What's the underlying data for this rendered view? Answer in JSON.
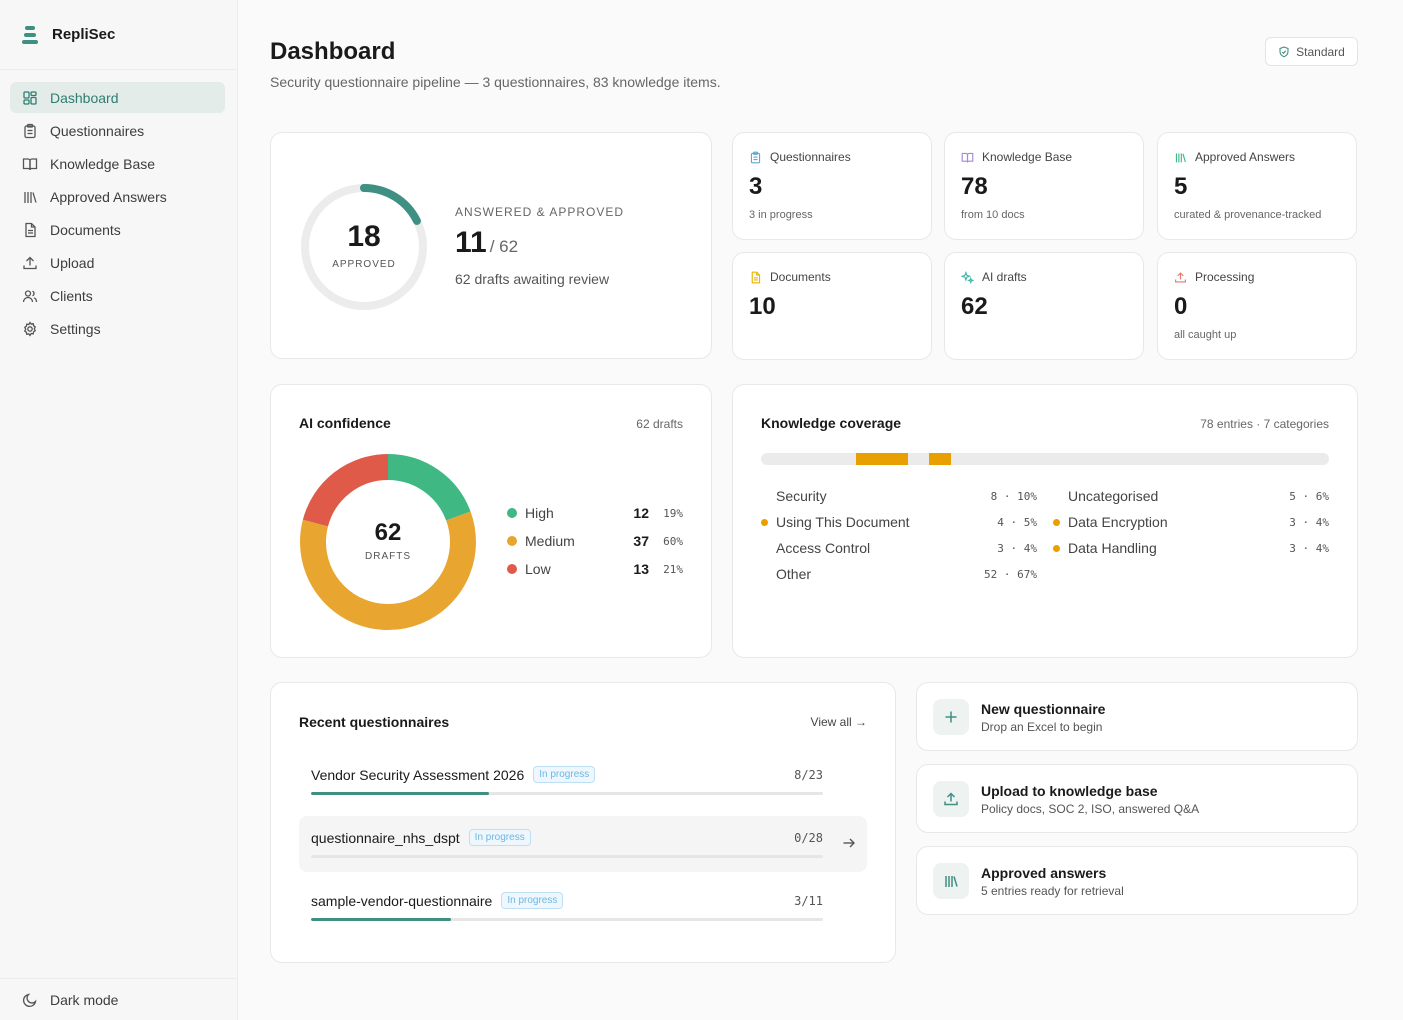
{
  "app": {
    "name": "RepliSec"
  },
  "sidebar": {
    "items": [
      {
        "label": "Dashboard",
        "icon": "dashboard-grid-icon",
        "active": true
      },
      {
        "label": "Questionnaires",
        "icon": "clipboard-icon"
      },
      {
        "label": "Knowledge Base",
        "icon": "book-icon"
      },
      {
        "label": "Approved Answers",
        "icon": "library-icon"
      },
      {
        "label": "Documents",
        "icon": "document-icon"
      },
      {
        "label": "Upload",
        "icon": "upload-icon"
      },
      {
        "label": "Clients",
        "icon": "users-icon"
      },
      {
        "label": "Settings",
        "icon": "gear-icon"
      }
    ],
    "footer": {
      "label": "Dark mode",
      "icon": "moon-icon"
    }
  },
  "header": {
    "title": "Dashboard",
    "subtitle": "Security questionnaire pipeline — 3 questionnaires, 83 knowledge items.",
    "plan_badge": "Standard"
  },
  "hero": {
    "ring_value": "18",
    "ring_label": "APPROVED",
    "ring_fraction": 0.177,
    "label": "ANSWERED & APPROVED",
    "value": "11",
    "total": "/ 62",
    "footnote": "62 drafts awaiting review"
  },
  "stats": [
    {
      "label": "Questionnaires",
      "value": "3",
      "sub": "3 in progress",
      "icon": "clipboard-icon",
      "color": "#5aa9d6"
    },
    {
      "label": "Knowledge Base",
      "value": "78",
      "sub": "from 10 docs",
      "icon": "book-icon",
      "color": "#a58ad6"
    },
    {
      "label": "Approved Answers",
      "value": "5",
      "sub": "curated & provenance-tracked",
      "icon": "library-icon",
      "color": "#3fb884"
    },
    {
      "label": "Documents",
      "value": "10",
      "sub": "",
      "icon": "document-icon",
      "color": "#e8b400"
    },
    {
      "label": "AI drafts",
      "value": "62",
      "sub": "",
      "icon": "sparkle-icon",
      "color": "#3fb8a8"
    },
    {
      "label": "Processing",
      "value": "0",
      "sub": "all caught up",
      "icon": "upload-icon",
      "color": "#e07a6a"
    }
  ],
  "confidence": {
    "title": "AI confidence",
    "meta": "62 drafts",
    "center_value": "62",
    "center_label": "DRAFTS",
    "legend": [
      {
        "name": "High",
        "count": "12",
        "pct": "19%",
        "value": 12,
        "color": "#3fb884"
      },
      {
        "name": "Medium",
        "count": "37",
        "pct": "60%",
        "value": 37,
        "color": "#e8a630"
      },
      {
        "name": "Low",
        "count": "13",
        "pct": "21%",
        "value": 13,
        "color": "#e05a4a"
      }
    ]
  },
  "coverage": {
    "title": "Knowledge coverage",
    "meta": "78 entries · 7 categories",
    "segments": [
      {
        "start": 0.167,
        "fraction": 0.091,
        "color": "#e8a000"
      },
      {
        "start": 0.295,
        "fraction": 0.039,
        "color": "#e8a000"
      }
    ],
    "left": [
      {
        "name": "Security",
        "value": "8 · 10%",
        "dot": false
      },
      {
        "name": "Using This Document",
        "value": "4 · 5%",
        "dot": true
      },
      {
        "name": "Access Control",
        "value": "3 · 4%",
        "dot": false
      },
      {
        "name": "Other",
        "value": "52 · 67%",
        "dot": false
      }
    ],
    "right": [
      {
        "name": "Uncategorised",
        "value": "5 · 6%",
        "dot": false
      },
      {
        "name": "Data Encryption",
        "value": "3 · 4%",
        "dot": true
      },
      {
        "name": "Data Handling",
        "value": "3 · 4%",
        "dot": true
      }
    ]
  },
  "recent": {
    "title": "Recent questionnaires",
    "view_all": "View all →",
    "rows": [
      {
        "name": "Vendor Security Assessment 2026",
        "status": "In progress",
        "count": "8/23",
        "progress": 0.348
      },
      {
        "name": "questionnaire_nhs_dspt",
        "status": "In progress",
        "count": "0/28",
        "progress": 0
      },
      {
        "name": "sample-vendor-questionnaire",
        "status": "In progress",
        "count": "3/11",
        "progress": 0.273
      }
    ]
  },
  "actions": [
    {
      "title": "New questionnaire",
      "sub": "Drop an Excel to begin",
      "icon": "plus-icon"
    },
    {
      "title": "Upload to knowledge base",
      "sub": "Policy docs, SOC 2, ISO, answered Q&A",
      "icon": "upload-icon"
    },
    {
      "title": "Approved answers",
      "sub": "5 entries ready for retrieval",
      "icon": "library-icon"
    }
  ],
  "colors": {
    "accent": "#3f8f82",
    "coverage": "#e8a000"
  }
}
